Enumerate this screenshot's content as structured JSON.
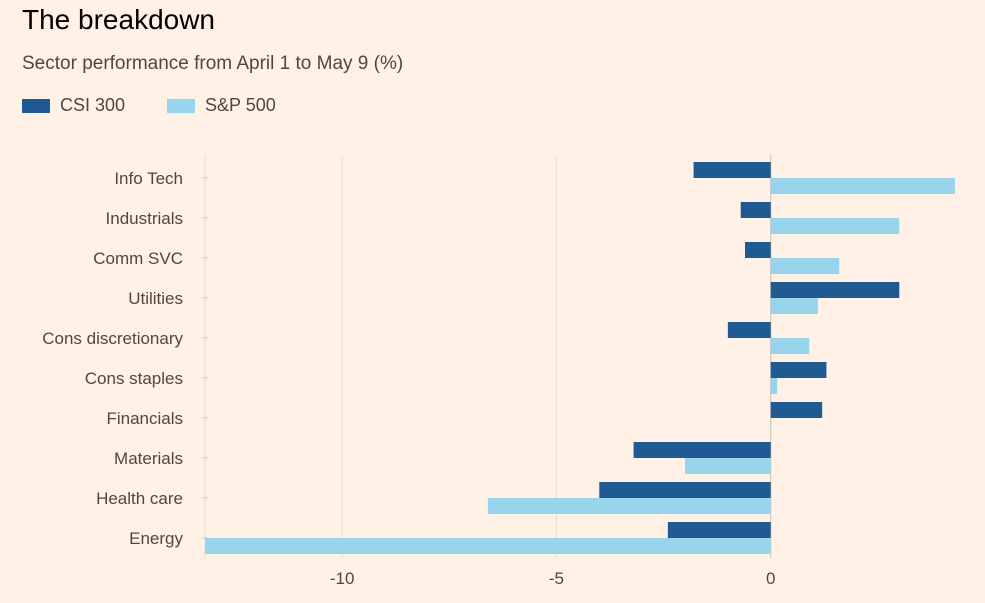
{
  "chart_data": {
    "type": "bar",
    "orientation": "horizontal",
    "title": "The breakdown",
    "subtitle": "Sector performance from April 1 to May 9 (%)",
    "categories": [
      "Info Tech",
      "Industrials",
      "Comm SVC",
      "Utilities",
      "Cons discretionary",
      "Cons staples",
      "Financials",
      "Materials",
      "Health care",
      "Energy"
    ],
    "series": [
      {
        "name": "CSI 300",
        "color": "#1f5a92",
        "values": [
          -1.8,
          -0.7,
          -0.6,
          3.0,
          -1.0,
          1.3,
          1.2,
          -3.2,
          -4.0,
          -2.4
        ]
      },
      {
        "name": "S&P 500",
        "color": "#98d5ec",
        "values": [
          4.3,
          3.0,
          1.6,
          1.1,
          0.9,
          0.15,
          0,
          -2.0,
          -6.6,
          -13.2
        ]
      }
    ],
    "xlim": [
      -13.2,
      4.3
    ],
    "xticks": [
      -10,
      -5,
      0
    ],
    "xtick_labels": [
      "-10",
      "-5",
      "0"
    ],
    "grid": true,
    "legend_position": "top-left"
  }
}
